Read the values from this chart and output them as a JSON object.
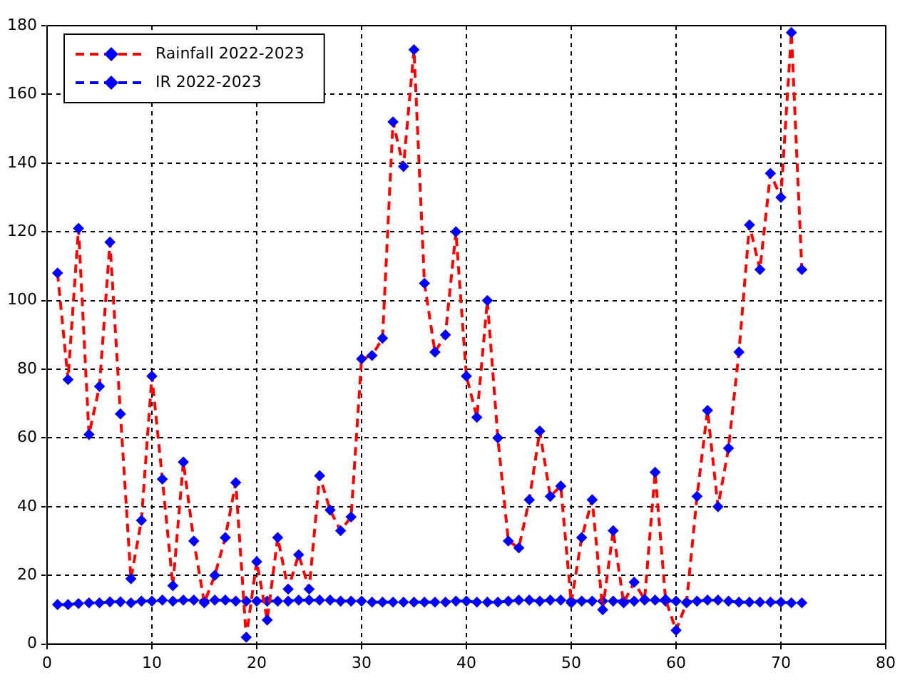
{
  "chart_data": {
    "type": "line",
    "x": [
      1,
      2,
      3,
      4,
      5,
      6,
      7,
      8,
      9,
      10,
      11,
      12,
      13,
      14,
      15,
      16,
      17,
      18,
      19,
      20,
      21,
      22,
      23,
      24,
      25,
      26,
      27,
      28,
      29,
      30,
      31,
      32,
      33,
      34,
      35,
      36,
      37,
      38,
      39,
      40,
      41,
      42,
      43,
      44,
      45,
      46,
      47,
      48,
      49,
      50,
      51,
      52,
      53,
      54,
      55,
      56,
      57,
      58,
      59,
      60,
      61,
      62,
      63,
      64,
      65,
      66,
      67,
      68,
      69,
      70,
      71,
      72
    ],
    "series": [
      {
        "name": "Rainfall 2022-2023",
        "color": "#ff0000",
        "values": [
          108,
          77,
          121,
          61,
          75,
          117,
          67,
          19,
          36,
          78,
          48,
          17,
          53,
          30,
          12,
          20,
          31,
          47,
          2,
          24,
          7,
          31,
          16,
          26,
          16,
          49,
          39,
          33,
          37,
          83,
          84,
          89,
          152,
          139,
          173,
          105,
          85,
          90,
          120,
          78,
          66,
          100,
          60,
          30,
          28,
          42,
          62,
          43,
          46,
          12,
          31,
          42,
          10,
          33,
          12,
          18,
          13,
          50,
          13,
          4,
          12,
          43,
          68,
          40,
          57,
          85,
          122,
          109,
          137,
          130,
          178,
          109
        ]
      },
      {
        "name": "IR 2022-2023",
        "color": "#0000ff",
        "values": [
          11.5,
          11.5,
          11.8,
          12,
          12,
          12.3,
          12.3,
          12,
          12.5,
          12.5,
          12.8,
          12.5,
          12.8,
          12.8,
          12.5,
          12.8,
          12.8,
          12.5,
          12.5,
          12.5,
          12.5,
          12.5,
          12.5,
          12.8,
          12.8,
          12.8,
          12.8,
          12.5,
          12.5,
          12.5,
          12.2,
          12.2,
          12.2,
          12.2,
          12.2,
          12.2,
          12.2,
          12.2,
          12.5,
          12.5,
          12.2,
          12.2,
          12.2,
          12.5,
          12.8,
          12.8,
          12.5,
          12.8,
          12.8,
          12.5,
          12.5,
          12.5,
          12.5,
          12.5,
          12.5,
          12.5,
          12.8,
          12.8,
          12.5,
          12.5,
          12.2,
          12.5,
          12.8,
          12.8,
          12.5,
          12.2,
          12.2,
          12.2,
          12.2,
          12.2,
          12,
          12
        ]
      }
    ],
    "xlim": [
      0,
      80
    ],
    "xticks": [
      0,
      10,
      20,
      30,
      40,
      50,
      60,
      70,
      80
    ],
    "ylim": [
      0,
      180
    ],
    "yticks": [
      0,
      20,
      40,
      60,
      80,
      100,
      120,
      140,
      160,
      180
    ],
    "grid": true,
    "legend": "top left",
    "marker": "diamond",
    "line_style": "dashed"
  }
}
